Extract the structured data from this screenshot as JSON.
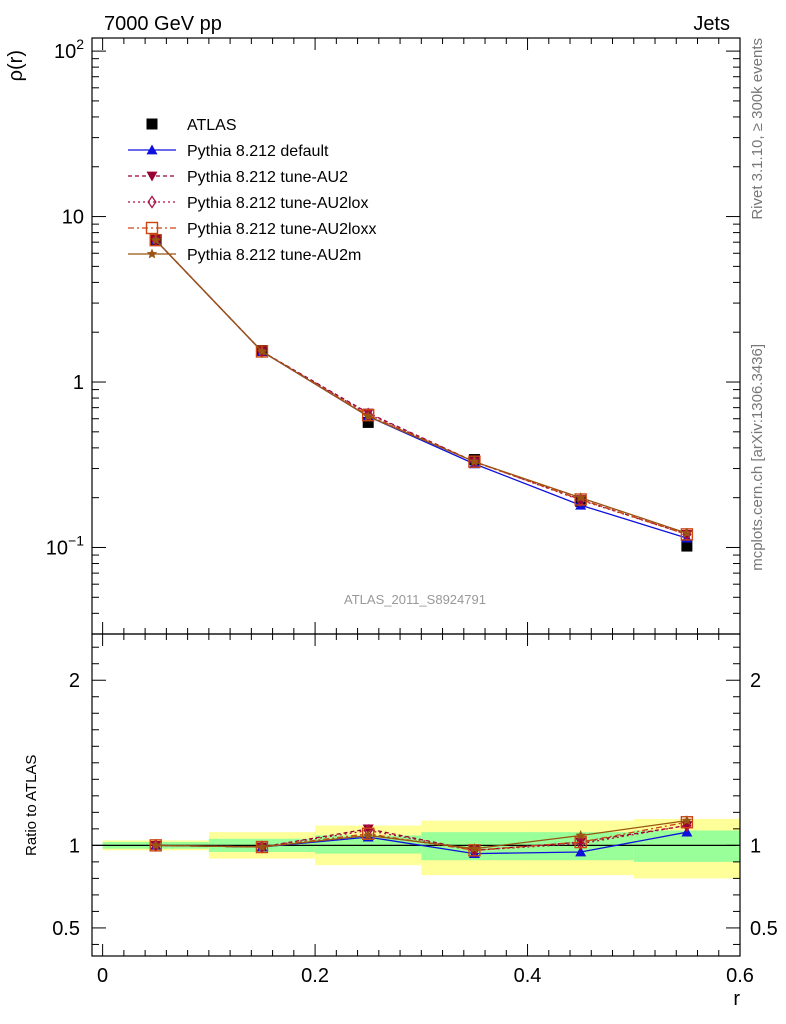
{
  "header": {
    "left": "7000 GeV pp",
    "right": "Jets"
  },
  "side_text": {
    "rivet": "Rivet 3.1.10, ≥ 300k events",
    "mcplots": "mcplots.cern.ch [arXiv:1306.3436]"
  },
  "watermark": "ATLAS_2011_S8924791",
  "chart_data": [
    {
      "type": "line",
      "scale": "log",
      "ylabel": "ρ(r)",
      "xlim": [
        -0.01,
        0.6
      ],
      "ylim": [
        0.03,
        120
      ],
      "y_ticks": [
        {
          "value": 0.1,
          "base": "10",
          "exp": "−1"
        },
        {
          "value": 1,
          "label": "1"
        },
        {
          "value": 10,
          "label": "10"
        },
        {
          "value": 100,
          "base": "10",
          "exp": "2"
        }
      ],
      "x": [
        0.05,
        0.15,
        0.25,
        0.35,
        0.45,
        0.55
      ],
      "series": [
        {
          "name": "ATLAS",
          "color": "#000000",
          "marker": "square",
          "dash": "none",
          "values": [
            7.2,
            1.55,
            0.57,
            0.34,
            0.19,
            0.102
          ]
        },
        {
          "name": "Pythia 8.212 default",
          "color": "#1010dd",
          "marker": "triangle-up",
          "dash": "solid",
          "values": [
            7.2,
            1.53,
            0.62,
            0.32,
            0.18,
            0.114
          ]
        },
        {
          "name": "Pythia 8.212 tune-AU2",
          "color": "#990033",
          "marker": "triangle-down",
          "dash": "4,3",
          "values": [
            7.2,
            1.53,
            0.65,
            0.33,
            0.195,
            0.12
          ]
        },
        {
          "name": "Pythia 8.212 tune-AU2lox",
          "color": "#aa1144",
          "marker": "diamond-open",
          "dash": "2,3",
          "values": [
            7.2,
            1.53,
            0.64,
            0.33,
            0.193,
            0.12
          ]
        },
        {
          "name": "Pythia 8.212 tune-AU2loxx",
          "color": "#cc4411",
          "marker": "square-open",
          "dash": "6,3,2,3",
          "values": [
            7.2,
            1.53,
            0.63,
            0.33,
            0.195,
            0.12
          ]
        },
        {
          "name": "Pythia 8.212 tune-AU2m",
          "color": "#995511",
          "marker": "star",
          "dash": "solid",
          "values": [
            7.2,
            1.53,
            0.62,
            0.33,
            0.2,
            0.122
          ]
        }
      ]
    },
    {
      "type": "line",
      "scale": "linear",
      "ylabel": "Ratio to ATLAS",
      "xlabel": "r",
      "xlim": [
        -0.01,
        0.6
      ],
      "ylim": [
        0.33,
        2.28
      ],
      "y_ticks": [
        0.5,
        1,
        2
      ],
      "x_ticks": [
        0,
        0.2,
        0.4,
        0.6
      ],
      "x_tick_labels": [
        "0",
        "0.2",
        "0.4",
        "0.6"
      ],
      "x": [
        0.05,
        0.15,
        0.25,
        0.35,
        0.45,
        0.55
      ],
      "bands": [
        {
          "x0": 0.0,
          "x1": 0.1,
          "yellow": [
            0.97,
            1.03
          ],
          "green": [
            0.98,
            1.02
          ]
        },
        {
          "x0": 0.1,
          "x1": 0.2,
          "yellow": [
            0.92,
            1.08
          ],
          "green": [
            0.96,
            1.04
          ]
        },
        {
          "x0": 0.2,
          "x1": 0.3,
          "yellow": [
            0.88,
            1.12
          ],
          "green": [
            0.95,
            1.06
          ]
        },
        {
          "x0": 0.3,
          "x1": 0.4,
          "yellow": [
            0.82,
            1.15
          ],
          "green": [
            0.91,
            1.08
          ]
        },
        {
          "x0": 0.4,
          "x1": 0.5,
          "yellow": [
            0.82,
            1.15
          ],
          "green": [
            0.91,
            1.08
          ]
        },
        {
          "x0": 0.5,
          "x1": 0.6,
          "yellow": [
            0.8,
            1.16
          ],
          "green": [
            0.9,
            1.09
          ]
        }
      ],
      "series": [
        {
          "name": "Pythia 8.212 default",
          "color": "#1010dd",
          "marker": "triangle-up",
          "dash": "solid",
          "values": [
            1.0,
            0.99,
            1.05,
            0.95,
            0.96,
            1.08
          ]
        },
        {
          "name": "Pythia 8.212 tune-AU2",
          "color": "#990033",
          "marker": "triangle-down",
          "dash": "4,3",
          "values": [
            1.0,
            0.99,
            1.1,
            0.97,
            1.02,
            1.12
          ]
        },
        {
          "name": "Pythia 8.212 tune-AU2lox",
          "color": "#aa1144",
          "marker": "diamond-open",
          "dash": "2,3",
          "values": [
            1.0,
            0.99,
            1.09,
            0.97,
            1.01,
            1.12
          ]
        },
        {
          "name": "Pythia 8.212 tune-AU2loxx",
          "color": "#cc4411",
          "marker": "square-open",
          "dash": "6,3,2,3",
          "values": [
            1.0,
            0.99,
            1.07,
            0.97,
            1.02,
            1.14
          ]
        },
        {
          "name": "Pythia 8.212 tune-AU2m",
          "color": "#995511",
          "marker": "star",
          "dash": "solid",
          "values": [
            1.0,
            0.99,
            1.06,
            0.98,
            1.06,
            1.15
          ]
        }
      ]
    }
  ]
}
